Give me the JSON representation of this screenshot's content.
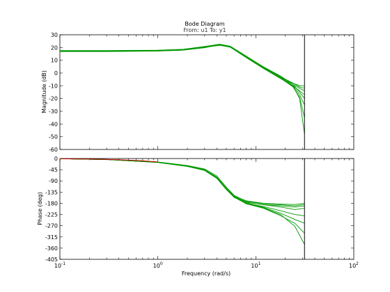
{
  "chart_data": {
    "type": "line",
    "title": "Bode Diagram",
    "subtitle": "From: u1  To: y1",
    "xlabel": "Frequency  (rad/s)",
    "x_scale": "log",
    "xlim": [
      0.1,
      100
    ],
    "x_ticks": [
      {
        "value": 0.1,
        "base": "10",
        "exp": "-1"
      },
      {
        "value": 1,
        "base": "10",
        "exp": "0"
      },
      {
        "value": 10,
        "base": "10",
        "exp": "1"
      },
      {
        "value": 100,
        "base": "10",
        "exp": "2"
      }
    ],
    "nyquist_frequency": 31.4,
    "line_color": "#009900",
    "nominal_color": "#cc0000",
    "grid": false,
    "panels": [
      {
        "id": "magnitude",
        "ylabel": "Magnitude  (dB)",
        "ylim": [
          -60,
          30
        ],
        "y_ticks": [
          30,
          20,
          10,
          0,
          -10,
          -20,
          -30,
          -40,
          -50,
          -60
        ],
        "series": [
          {
            "x": [
              0.1,
              0.3,
              1,
              1.8,
              3,
              4.3,
              5.5,
              8,
              12,
              18,
              24,
              28,
              31.4
            ],
            "y": [
              17,
              17,
              17.3,
              18,
              20,
              22.2,
              20.5,
              12.5,
              4,
              -3.5,
              -8,
              -10,
              -10
            ]
          },
          {
            "x": [
              0.1,
              0.3,
              1,
              1.8,
              3,
              4.2,
              5.5,
              8,
              12,
              18,
              24,
              28,
              31.4
            ],
            "y": [
              17.5,
              17.5,
              17.8,
              18.5,
              20.5,
              22.5,
              20.8,
              13,
              4.5,
              -3,
              -8,
              -11,
              -12
            ]
          },
          {
            "x": [
              0.1,
              0.3,
              1,
              1.8,
              3,
              4.4,
              5.5,
              8,
              12,
              18,
              24,
              28,
              31.4
            ],
            "y": [
              17.2,
              17.2,
              17.5,
              18.2,
              20.2,
              21.8,
              20.2,
              12.5,
              3.8,
              -4,
              -9,
              -12,
              -14
            ]
          },
          {
            "x": [
              0.1,
              0.3,
              1,
              1.8,
              3,
              4.1,
              5.5,
              8,
              12,
              18,
              24,
              28,
              31.4
            ],
            "y": [
              16.8,
              16.8,
              17.2,
              17.9,
              19.8,
              22,
              20.2,
              12,
              3.5,
              -4.5,
              -10,
              -14,
              -17
            ]
          },
          {
            "x": [
              0.1,
              0.3,
              1,
              1.8,
              3,
              4.3,
              5.5,
              8,
              12,
              18,
              24,
              28,
              31.4
            ],
            "y": [
              17.6,
              17.6,
              17.9,
              18.6,
              20.8,
              22.6,
              21,
              13.2,
              4.8,
              -2.5,
              -9,
              -15,
              -20
            ]
          },
          {
            "x": [
              0.1,
              0.3,
              1,
              1.8,
              3,
              4.2,
              5.5,
              8,
              12,
              18,
              24,
              28,
              31.4
            ],
            "y": [
              17,
              17,
              17.4,
              18.1,
              20,
              22.2,
              20.4,
              12.4,
              4,
              -4,
              -10,
              -17,
              -25
            ]
          },
          {
            "x": [
              0.1,
              0.3,
              1,
              1.8,
              3,
              4.4,
              5.5,
              8,
              12,
              18,
              24,
              28,
              31.4
            ],
            "y": [
              17.3,
              17.3,
              17.6,
              18.3,
              20.4,
              22.3,
              20.6,
              12.8,
              4.3,
              -3.5,
              -10.5,
              -20,
              -48
            ]
          },
          {
            "x": [
              0.1,
              0.3,
              1,
              1.8,
              3,
              4.3,
              5.5,
              8,
              12,
              18,
              24,
              28,
              31.4
            ],
            "y": [
              17.1,
              17.1,
              17.4,
              18.1,
              20.1,
              22,
              20.3,
              12.3,
              3.9,
              -4.2,
              -11,
              -19,
              -35
            ]
          }
        ]
      },
      {
        "id": "phase",
        "ylabel": "Phase  (deg)",
        "ylim": [
          -405,
          0
        ],
        "y_ticks": [
          0,
          -45,
          -90,
          -135,
          -180,
          -225,
          -270,
          -315,
          -360,
          -405
        ],
        "series": [
          {
            "x": [
              0.1,
              0.3,
              1,
              2,
              3,
              4,
              5,
              6,
              8,
              12,
              18,
              25,
              31.4
            ],
            "y": [
              -1,
              -4,
              -15,
              -30,
              -45,
              -75,
              -120,
              -150,
              -170,
              -180,
              -183,
              -185,
              -180
            ]
          },
          {
            "x": [
              0.1,
              0.3,
              1,
              2,
              3,
              4,
              5,
              6,
              8,
              12,
              18,
              25,
              31.4
            ],
            "y": [
              -1,
              -4,
              -14,
              -28,
              -42,
              -70,
              -115,
              -148,
              -172,
              -182,
              -186,
              -190,
              -185
            ]
          },
          {
            "x": [
              0.1,
              0.3,
              1,
              2,
              3,
              4,
              5,
              6,
              8,
              12,
              18,
              25,
              31.4
            ],
            "y": [
              -1,
              -4,
              -16,
              -32,
              -48,
              -80,
              -125,
              -155,
              -176,
              -186,
              -190,
              -195,
              -190
            ]
          },
          {
            "x": [
              0.1,
              0.3,
              1,
              2,
              3,
              4,
              5,
              6,
              8,
              12,
              18,
              25,
              31.4
            ],
            "y": [
              -1,
              -4,
              -15,
              -30,
              -46,
              -76,
              -122,
              -152,
              -175,
              -186,
              -195,
              -205,
              -200
            ]
          },
          {
            "x": [
              0.1,
              0.3,
              1,
              2,
              3,
              4,
              5,
              6,
              8,
              12,
              18,
              25,
              31.4
            ],
            "y": [
              -1,
              -4,
              -15,
              -31,
              -47,
              -78,
              -124,
              -156,
              -180,
              -193,
              -210,
              -225,
              -230
            ]
          },
          {
            "x": [
              0.1,
              0.3,
              1,
              2,
              3,
              4,
              5,
              6,
              8,
              12,
              18,
              25,
              31.4
            ],
            "y": [
              -1,
              -4,
              -15,
              -30,
              -45,
              -75,
              -120,
              -152,
              -178,
              -196,
              -220,
              -245,
              -260
            ]
          },
          {
            "x": [
              0.1,
              0.3,
              1,
              2,
              3,
              4,
              5,
              6,
              8,
              12,
              18,
              25,
              31.4
            ],
            "y": [
              -1,
              -4,
              -16,
              -31,
              -46,
              -77,
              -123,
              -155,
              -182,
              -200,
              -230,
              -260,
              -300
            ]
          },
          {
            "x": [
              0.1,
              0.3,
              1,
              2,
              3,
              4,
              5,
              6,
              8,
              12,
              18,
              25,
              31.4
            ],
            "y": [
              -1,
              -4,
              -15,
              -30,
              -45,
              -76,
              -121,
              -153,
              -180,
              -198,
              -226,
              -272,
              -345
            ]
          }
        ],
        "nominal": {
          "x": [
            0.1,
            0.2,
            0.4,
            0.7,
            1
          ],
          "y": [
            -1,
            -2,
            -5,
            -9,
            -14
          ]
        }
      }
    ]
  }
}
